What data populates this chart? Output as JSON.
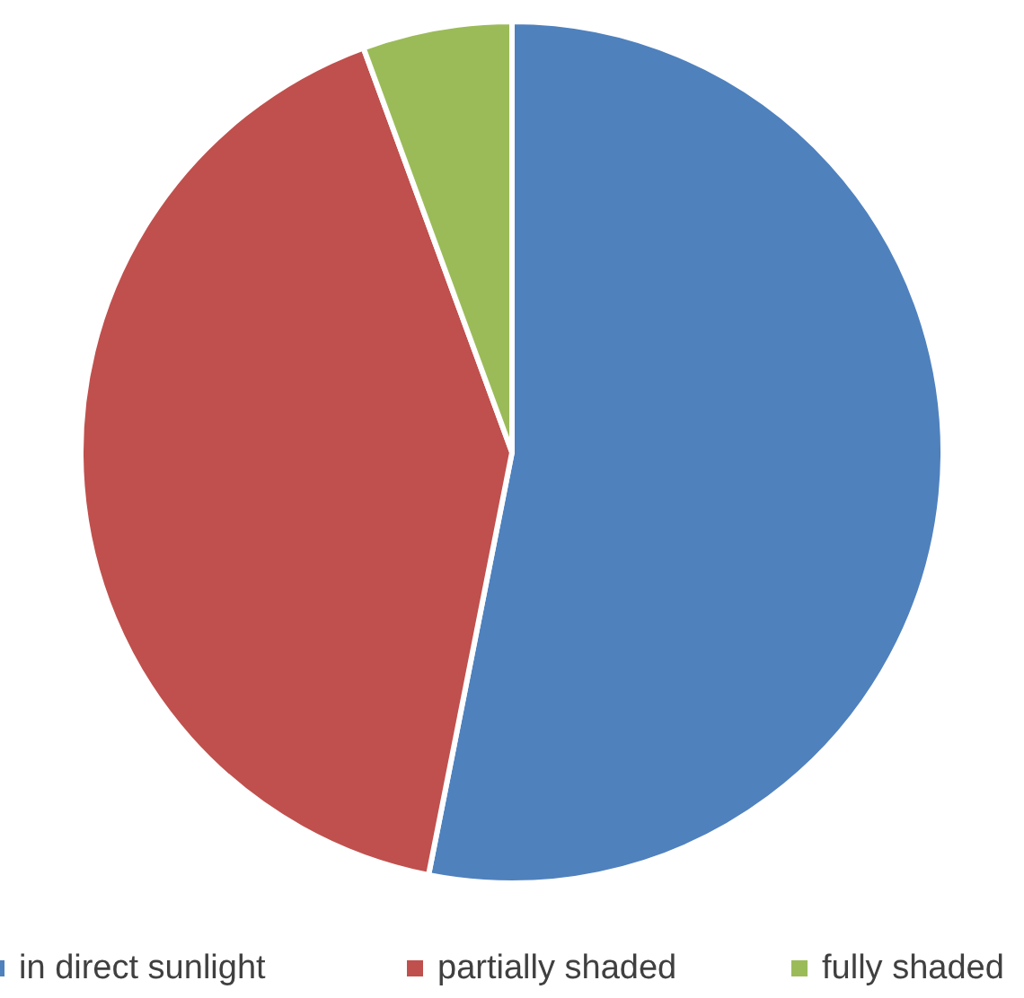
{
  "chart_data": {
    "type": "pie",
    "categories": [
      "in direct sunlight",
      "partially shaded",
      "fully shaded"
    ],
    "values": [
      53.1,
      41.3,
      5.6
    ],
    "colors": [
      "#4f81bd",
      "#c0504d",
      "#9bbb59"
    ],
    "legend": "bottom"
  }
}
